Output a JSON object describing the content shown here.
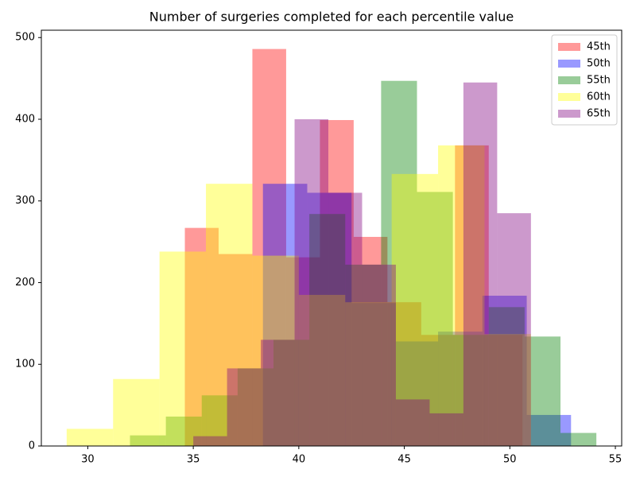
{
  "chart_data": {
    "type": "histogram",
    "title": "Number of surgeries completed for each percentile value",
    "xlim": [
      27.8,
      55.3
    ],
    "ylim": [
      0,
      509
    ],
    "xticks": [
      30,
      35,
      40,
      45,
      50,
      55
    ],
    "yticks": [
      0,
      100,
      200,
      300,
      400,
      500
    ],
    "legend": "upper right",
    "opacity": 0.4,
    "series": [
      {
        "name": "45th",
        "color": "red",
        "bins": [
          34.6,
          36.2,
          37.8,
          39.4,
          41.0,
          42.6,
          44.2,
          45.8,
          47.4,
          49.0,
          50.6
        ],
        "values": [
          267,
          235,
          486,
          231,
          399,
          256,
          176,
          136,
          368,
          136
        ]
      },
      {
        "name": "50th",
        "color": "blue",
        "bins": [
          38.3,
          40.4,
          42.5,
          44.6,
          46.6,
          48.7,
          50.8,
          52.9
        ],
        "values": [
          321,
          310,
          175,
          128,
          140,
          184,
          38
        ]
      },
      {
        "name": "55th",
        "color": "green",
        "bins": [
          32.0,
          33.7,
          35.4,
          37.1,
          38.8,
          40.5,
          42.2,
          43.9,
          45.6,
          47.3,
          49.0,
          50.7,
          52.4,
          54.1
        ],
        "values": [
          13,
          36,
          62,
          95,
          130,
          284,
          222,
          447,
          311,
          136,
          170,
          134,
          16
        ]
      },
      {
        "name": "60th",
        "color": "yellow",
        "bins": [
          29.0,
          31.2,
          33.4,
          35.6,
          37.8,
          40.0,
          42.2,
          44.4,
          46.6,
          48.8,
          51.0
        ],
        "values": [
          21,
          82,
          238,
          321,
          233,
          185,
          176,
          333,
          368,
          137
        ]
      },
      {
        "name": "65th",
        "color": "purple",
        "bins": [
          35.0,
          36.6,
          38.2,
          39.8,
          41.4,
          43.0,
          44.6,
          46.2,
          47.8,
          49.4,
          51.0
        ],
        "values": [
          12,
          95,
          130,
          400,
          310,
          222,
          57,
          40,
          445,
          285
        ]
      }
    ]
  }
}
